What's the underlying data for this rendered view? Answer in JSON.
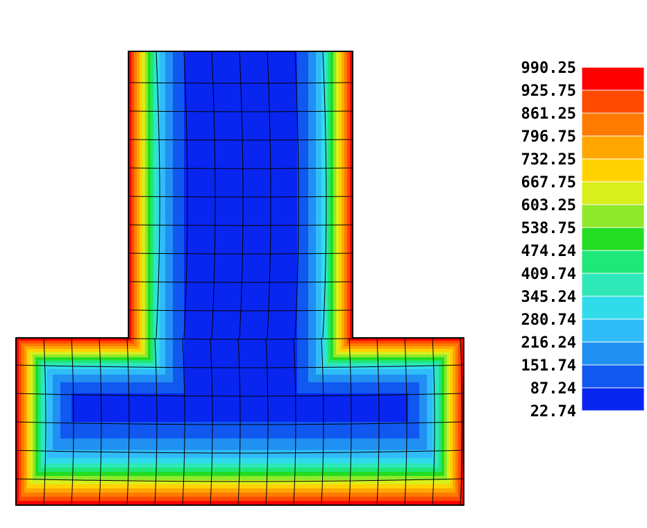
{
  "chart_data": {
    "type": "contour",
    "levels": [
      990.25,
      925.75,
      861.25,
      796.75,
      732.25,
      667.75,
      603.25,
      538.75,
      474.24,
      409.74,
      345.24,
      280.74,
      216.24,
      151.74,
      87.24,
      22.74
    ],
    "colors": [
      "#ff0000",
      "#ff4a00",
      "#ff7a00",
      "#ffa600",
      "#ffd200",
      "#d8ef1c",
      "#8fe82a",
      "#22dd22",
      "#1ee878",
      "#2ee8b8",
      "#30dcea",
      "#30bcf8",
      "#2090f2",
      "#1058f0",
      "#0826f0"
    ]
  }
}
